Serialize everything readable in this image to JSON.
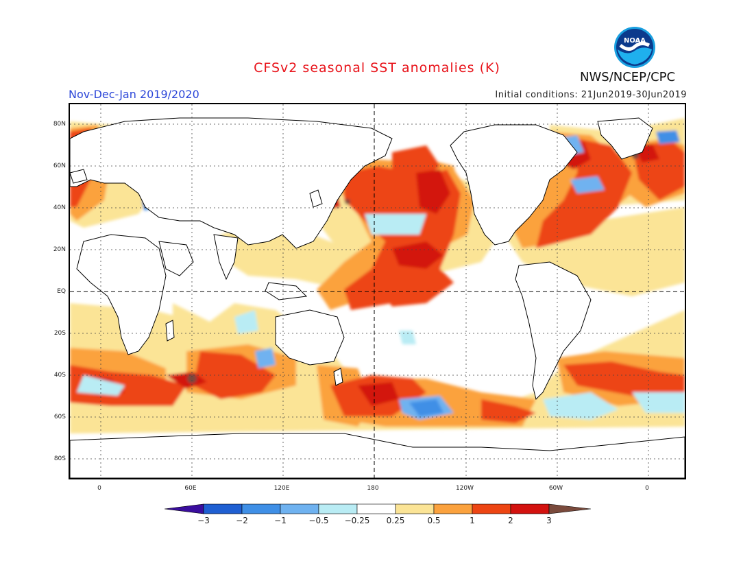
{
  "header": {
    "title": "CFSv2 seasonal SST anomalies (K)",
    "organization": "NWS/NCEP/CPC",
    "season": "Nov-Dec-Jan 2019/2020",
    "initial_conditions": "Initial conditions: 21Jun2019-30Jun2019",
    "logo_text": "NOAA"
  },
  "axes": {
    "lat_labels": [
      "80N",
      "60N",
      "40N",
      "20N",
      "EQ",
      "20S",
      "40S",
      "60S",
      "80S"
    ],
    "lon_labels": [
      "0",
      "60E",
      "120E",
      "180",
      "120W",
      "60W",
      "0"
    ]
  },
  "colorbar": {
    "labels": [
      "−3",
      "−2",
      "−1",
      "−0.5",
      "−0.25",
      "0.25",
      "0.5",
      "1",
      "2",
      "3"
    ],
    "colors": [
      "#3a0d9e",
      "#1f5fd2",
      "#3f8fe6",
      "#6fb2f0",
      "#b9ecf4",
      "#ffffff",
      "#fbe496",
      "#fba23e",
      "#ed4513",
      "#d3120f",
      "#b4090a",
      "#7a4a3c"
    ]
  },
  "map": {
    "land_color": "#ffffff",
    "coast_color": "#000000",
    "colors": {
      "neg2": "#1f5fd2",
      "neg1": "#3f8fe6",
      "neg05": "#6fb2f0",
      "neg025": "#b9ecf4",
      "pos025": "#fbe496",
      "pos05": "#fba23e",
      "pos1": "#ed4513",
      "pos2": "#d3120f",
      "pos3": "#b4090a",
      "brown": "#7a4a3c"
    }
  }
}
